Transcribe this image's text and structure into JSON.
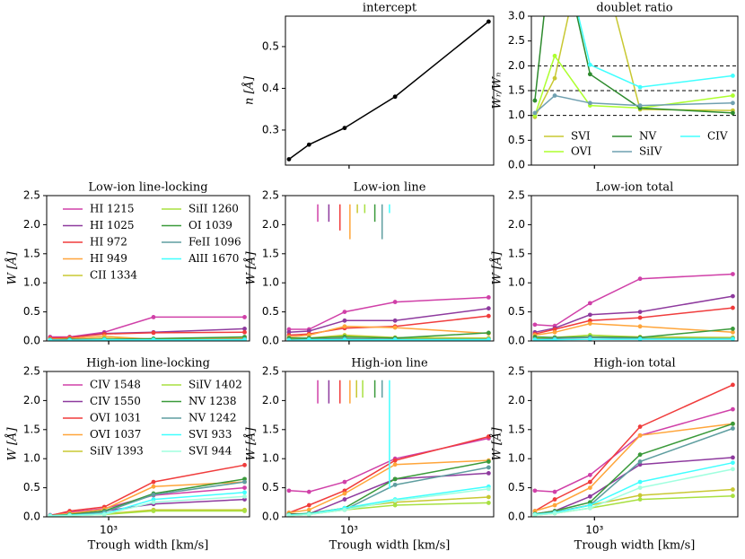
{
  "chart_data": [
    {
      "type": "line",
      "title": "intercept",
      "ylabel": "n [Å]",
      "x": [
        500,
        630,
        950,
        1700,
        5000
      ],
      "xlim": [
        480,
        5300
      ],
      "xlog": true,
      "xticks": [
        1000
      ],
      "show_xticklabels": false,
      "ylim": [
        0.216,
        0.573
      ],
      "yticks": [
        0.3,
        0.4,
        0.5
      ],
      "series": [
        {
          "color": "#000000",
          "values": [
            0.23,
            0.265,
            0.305,
            0.38,
            0.56
          ]
        }
      ]
    },
    {
      "type": "line",
      "title": "doublet ratio",
      "ylabel": "Wᵣ/Wₙ",
      "x": [
        500,
        630,
        950,
        1700,
        5000
      ],
      "xlim": [
        480,
        5300
      ],
      "xlog": true,
      "xticks": [
        1000
      ],
      "show_xticklabels": false,
      "ylim": [
        0,
        3
      ],
      "yticks": [
        {
          "value": 0,
          "label": "0.0"
        },
        0.5,
        {
          "value": 1,
          "label": "1.0"
        },
        1.5,
        {
          "value": 2,
          "label": "2.0"
        },
        2.5,
        {
          "value": 3,
          "label": "3.0"
        }
      ],
      "hlines": [
        1,
        1.5,
        2
      ],
      "legend": "lower center",
      "legend_columns": 3,
      "series": [
        {
          "name": "SVI",
          "color": "#c8c832",
          "values": [
            0.97,
            1.75,
            5,
            1.12,
            1.1
          ]
        },
        {
          "name": "OVI",
          "color": "#adff2f",
          "values": [
            1.0,
            2.2,
            1.2,
            1.15,
            1.4
          ]
        },
        {
          "name": "NV",
          "color": "#2e8b2e",
          "values": [
            1.3,
            5,
            1.83,
            1.15,
            1.05
          ]
        },
        {
          "name": "SiIV",
          "color": "#6fa0b0",
          "values": [
            1.05,
            1.4,
            1.25,
            1.2,
            1.25
          ]
        },
        {
          "name": "CIV",
          "color": "#40ffff",
          "values": [
            null,
            5,
            2.02,
            1.57,
            1.8
          ]
        }
      ]
    },
    {
      "type": "line",
      "title": "Low-ion line-locking",
      "ylabel": "W [Å]",
      "x": [
        500,
        630,
        950,
        1700,
        5000
      ],
      "xlim": [
        480,
        5300
      ],
      "xlog": true,
      "xticks": [
        1000
      ],
      "show_xticklabels": false,
      "ylim": [
        0,
        2.5
      ],
      "yticks": [
        {
          "value": 0,
          "label": "0.0"
        },
        0.5,
        {
          "value": 1,
          "label": "1.0"
        },
        1.5,
        {
          "value": 2,
          "label": "2.0"
        },
        2.5
      ],
      "legend": "upper left",
      "legend_columns": 2,
      "series": [
        {
          "name": "HI 1215",
          "color": "#d040a8",
          "values": [
            0.07,
            0.07,
            0.15,
            0.41,
            0.41
          ]
        },
        {
          "name": "HI 1025",
          "color": "#8e3a9e",
          "values": [
            0.05,
            0.06,
            0.13,
            0.15,
            0.21
          ]
        },
        {
          "name": "HI 972",
          "color": "#f03c3c",
          "values": [
            0.05,
            0.06,
            0.12,
            0.14,
            0.15
          ]
        },
        {
          "name": "HI 949",
          "color": "#ffa53a",
          "values": [
            0.03,
            0.04,
            0.08,
            0.03,
            0.05
          ]
        },
        {
          "name": "CII 1334",
          "color": "#c8c832",
          "values": [
            0.02,
            0.02,
            0.05,
            0.03,
            0.03
          ]
        },
        {
          "name": "SiII 1260",
          "color": "#a8e040",
          "values": [
            0.02,
            0.02,
            0.04,
            0.02,
            0.02
          ]
        },
        {
          "name": "OI 1039",
          "color": "#3a9a3a",
          "values": [
            0.02,
            0.03,
            0.03,
            0.04,
            0.07
          ]
        },
        {
          "name": "FeII 1096",
          "color": "#5f9ea0",
          "values": [
            0.02,
            0.02,
            0.03,
            0.02,
            0.03
          ]
        },
        {
          "name": "AlII 1670",
          "color": "#40ffff",
          "values": [
            0.01,
            0.01,
            0.02,
            0.02,
            0.02
          ]
        }
      ]
    },
    {
      "type": "line",
      "title": "Low-ion line",
      "ylabel": "W [Å]",
      "x": [
        500,
        630,
        950,
        1700,
        5000
      ],
      "xlim": [
        480,
        5300
      ],
      "xlog": true,
      "xticks": [
        1000
      ],
      "show_xticklabels": false,
      "ylim": [
        0,
        2.5
      ],
      "yticks": [
        {
          "value": 0,
          "label": "0.0"
        },
        0.5,
        {
          "value": 1,
          "label": "1.0"
        },
        1.5,
        {
          "value": 2,
          "label": "2.0"
        },
        2.5
      ],
      "marker_top": 2.35,
      "series": [
        {
          "color": "#d040a8",
          "values": [
            0.2,
            0.2,
            0.5,
            0.67,
            0.75
          ],
          "marker_x": 697,
          "marker_y": 2.05
        },
        {
          "color": "#8e3a9e",
          "values": [
            0.15,
            0.17,
            0.35,
            0.35,
            0.56
          ],
          "marker_x": 792,
          "marker_y": 2.05
        },
        {
          "color": "#f03c3c",
          "values": [
            0.1,
            0.12,
            0.22,
            0.25,
            0.43
          ],
          "marker_x": 900,
          "marker_y": 1.9
        },
        {
          "color": "#ffa53a",
          "values": [
            0.07,
            0.1,
            0.25,
            0.23,
            0.13
          ],
          "marker_x": 1010,
          "marker_y": 1.75
        },
        {
          "color": "#c8c832",
          "values": [
            0.04,
            0.05,
            0.1,
            0.06,
            0.05
          ],
          "marker_x": 1100,
          "marker_y": 2.2
        },
        {
          "color": "#a8e040",
          "values": [
            0.03,
            0.04,
            0.08,
            0.05,
            0.04
          ],
          "marker_x": 1198,
          "marker_y": 2.2
        },
        {
          "color": "#3a9a3a",
          "values": [
            0.05,
            0.05,
            0.07,
            0.05,
            0.14
          ],
          "marker_x": 1346,
          "marker_y": 2.05
        },
        {
          "color": "#5f9ea0",
          "values": [
            0.02,
            0.03,
            0.04,
            0.03,
            0.03
          ],
          "marker_x": 1464,
          "marker_y": 1.75
        },
        {
          "color": "#40ffff",
          "values": [
            0.01,
            0.02,
            0.02,
            0.02,
            0.02
          ],
          "marker_x": 1594,
          "marker_y": 2.2
        }
      ]
    },
    {
      "type": "line",
      "title": "Low-ion total",
      "ylabel": "W [Å]",
      "x": [
        500,
        630,
        950,
        1700,
        5000
      ],
      "xlim": [
        480,
        5300
      ],
      "xlog": true,
      "xticks": [
        1000
      ],
      "show_xticklabels": false,
      "ylim": [
        0,
        2.5
      ],
      "yticks": [
        {
          "value": 0,
          "label": "0.0"
        },
        0.5,
        {
          "value": 1,
          "label": "1.0"
        },
        1.5,
        {
          "value": 2,
          "label": "2.0"
        },
        2.5
      ],
      "series": [
        {
          "color": "#d040a8",
          "values": [
            0.28,
            0.26,
            0.65,
            1.07,
            1.15
          ]
        },
        {
          "color": "#8e3a9e",
          "values": [
            0.15,
            0.22,
            0.45,
            0.5,
            0.77
          ]
        },
        {
          "color": "#f03c3c",
          "values": [
            0.12,
            0.2,
            0.35,
            0.4,
            0.57
          ]
        },
        {
          "color": "#ffa53a",
          "values": [
            0.1,
            0.15,
            0.3,
            0.25,
            0.15
          ]
        },
        {
          "color": "#c8c832",
          "values": [
            0.05,
            0.06,
            0.1,
            0.07,
            0.06
          ]
        },
        {
          "color": "#a8e040",
          "values": [
            0.04,
            0.05,
            0.1,
            0.06,
            0.05
          ]
        },
        {
          "color": "#3a9a3a",
          "values": [
            0.07,
            0.06,
            0.07,
            0.06,
            0.21
          ]
        },
        {
          "color": "#5f9ea0",
          "values": [
            0.03,
            0.04,
            0.06,
            0.04,
            0.04
          ]
        },
        {
          "color": "#40ffff",
          "values": [
            0.02,
            0.02,
            0.03,
            0.03,
            0.03
          ]
        }
      ]
    },
    {
      "type": "line",
      "title": "High-ion line-locking",
      "ylabel": "W [Å]",
      "xlabel": "Trough width [km/s]",
      "x": [
        500,
        630,
        950,
        1700,
        5000
      ],
      "xlim": [
        480,
        5300
      ],
      "xlog": true,
      "xticks": [
        {
          "value": 1000,
          "label": "10³"
        }
      ],
      "ylim": [
        0,
        2.5
      ],
      "yticks": [
        {
          "value": 0,
          "label": "0.0"
        },
        0.5,
        {
          "value": 1,
          "label": "1.0"
        },
        1.5,
        {
          "value": 2,
          "label": "2.0"
        },
        2.5
      ],
      "legend": "upper left",
      "legend_columns": 2,
      "series": [
        {
          "name": "CIV 1548",
          "color": "#d040a8",
          "values": [
            0.03,
            0.08,
            0.14,
            0.37,
            0.5
          ]
        },
        {
          "name": "CIV 1550",
          "color": "#8e3a9e",
          "values": [
            0.02,
            0.05,
            0.1,
            0.22,
            0.3
          ]
        },
        {
          "name": "OVI 1031",
          "color": "#f03c3c",
          "values": [
            0.02,
            0.1,
            0.17,
            0.6,
            0.89
          ]
        },
        {
          "name": "OVI 1037",
          "color": "#ffa53a",
          "values": [
            0.02,
            0.06,
            0.13,
            0.52,
            0.6
          ]
        },
        {
          "name": "SiIV 1393",
          "color": "#c8c832",
          "values": [
            0.01,
            0.03,
            0.05,
            0.12,
            0.12
          ]
        },
        {
          "name": "SiIV 1402",
          "color": "#a8e040",
          "values": [
            0.01,
            0.02,
            0.04,
            0.1,
            0.1
          ]
        },
        {
          "name": "NV 1238",
          "color": "#3a9a3a",
          "values": [
            0.02,
            0.04,
            0.1,
            0.4,
            0.65
          ]
        },
        {
          "name": "NV 1242",
          "color": "#5f9ea0",
          "values": [
            0.02,
            0.03,
            0.08,
            0.38,
            0.6
          ]
        },
        {
          "name": "SVI 933",
          "color": "#40ffff",
          "values": [
            0.02,
            0.03,
            0.05,
            0.3,
            0.42
          ]
        },
        {
          "name": "SVI 944",
          "color": "#a0ffdf",
          "values": [
            0.01,
            0.02,
            0.04,
            0.25,
            0.35
          ]
        }
      ]
    },
    {
      "type": "line",
      "title": "High-ion line",
      "ylabel": "W [Å]",
      "xlabel": "Trough width [km/s]",
      "x": [
        500,
        630,
        950,
        1700,
        5000
      ],
      "xlim": [
        480,
        5300
      ],
      "xlog": true,
      "xticks": [
        {
          "value": 1000,
          "label": "10³"
        }
      ],
      "ylim": [
        0,
        2.5
      ],
      "yticks": [
        {
          "value": 0,
          "label": "0.0"
        },
        0.5,
        {
          "value": 1,
          "label": "1.0"
        },
        1.5,
        {
          "value": 2,
          "label": "2.0"
        },
        2.5
      ],
      "marker_top": 2.35,
      "series": [
        {
          "color": "#d040a8",
          "values": [
            0.45,
            0.43,
            0.6,
            1.0,
            1.35
          ],
          "marker_x": 697,
          "marker_y": 1.95
        },
        {
          "color": "#8e3a9e",
          "values": [
            0.05,
            0.05,
            0.3,
            0.65,
            0.75
          ],
          "marker_x": 792,
          "marker_y": 1.95
        },
        {
          "color": "#f03c3c",
          "values": [
            0.07,
            0.2,
            0.45,
            0.97,
            1.38
          ],
          "marker_x": 900,
          "marker_y": 1.95
        },
        {
          "color": "#ffa53a",
          "values": [
            0.07,
            0.12,
            0.4,
            0.9,
            0.97
          ],
          "marker_x": 1010,
          "marker_y": 1.95
        },
        {
          "color": "#c8c832",
          "values": [
            0.03,
            0.05,
            0.15,
            0.25,
            0.34
          ],
          "marker_x": 1090,
          "marker_y": 2.05
        },
        {
          "color": "#a8e040",
          "values": [
            0.02,
            0.04,
            0.12,
            0.2,
            0.24
          ],
          "marker_x": 1170,
          "marker_y": 2.05
        },
        {
          "color": "#3a9a3a",
          "values": [
            0.04,
            0.06,
            0.15,
            0.65,
            0.95
          ],
          "marker_x": 1346,
          "marker_y": 2.05
        },
        {
          "color": "#5f9ea0",
          "values": [
            0.03,
            0.05,
            0.12,
            0.55,
            0.85
          ],
          "marker_x": 1464,
          "marker_y": 2.05
        },
        {
          "color": "#40ffff",
          "values": [
            0.03,
            0.05,
            0.15,
            0.3,
            0.52
          ],
          "marker_x": 1594,
          "marker_y": 0.48
        },
        {
          "color": "#a0ffdf",
          "values": [
            0.02,
            0.04,
            0.12,
            0.28,
            0.48
          ]
        }
      ]
    },
    {
      "type": "line",
      "title": "High-ion total",
      "ylabel": "W [Å]",
      "xlabel": "Trough width [km/s]",
      "x": [
        500,
        630,
        950,
        1700,
        5000
      ],
      "xlim": [
        480,
        5300
      ],
      "xlog": true,
      "xticks": [
        {
          "value": 1000,
          "label": "10³"
        }
      ],
      "ylim": [
        0,
        2.5
      ],
      "yticks": [
        {
          "value": 0,
          "label": "0.0"
        },
        0.5,
        {
          "value": 1,
          "label": "1.0"
        },
        1.5,
        {
          "value": 2,
          "label": "2.0"
        },
        2.5
      ],
      "series": [
        {
          "color": "#d040a8",
          "values": [
            0.45,
            0.43,
            0.72,
            1.4,
            1.85
          ]
        },
        {
          "color": "#8e3a9e",
          "values": [
            0.05,
            0.1,
            0.35,
            0.9,
            1.02
          ]
        },
        {
          "color": "#f03c3c",
          "values": [
            0.1,
            0.3,
            0.6,
            1.55,
            2.27
          ]
        },
        {
          "color": "#ffa53a",
          "values": [
            0.1,
            0.2,
            0.5,
            1.4,
            1.6
          ]
        },
        {
          "color": "#c8c832",
          "values": [
            0.04,
            0.08,
            0.2,
            0.37,
            0.47
          ]
        },
        {
          "color": "#a8e040",
          "values": [
            0.03,
            0.06,
            0.15,
            0.3,
            0.36
          ]
        },
        {
          "color": "#3a9a3a",
          "values": [
            0.05,
            0.1,
            0.25,
            1.07,
            1.6
          ]
        },
        {
          "color": "#5f9ea0",
          "values": [
            0.04,
            0.08,
            0.2,
            0.95,
            1.52
          ]
        },
        {
          "color": "#40ffff",
          "values": [
            0.04,
            0.07,
            0.2,
            0.6,
            0.93
          ]
        },
        {
          "color": "#a0ffdf",
          "values": [
            0.03,
            0.06,
            0.15,
            0.5,
            0.82
          ]
        }
      ]
    }
  ]
}
